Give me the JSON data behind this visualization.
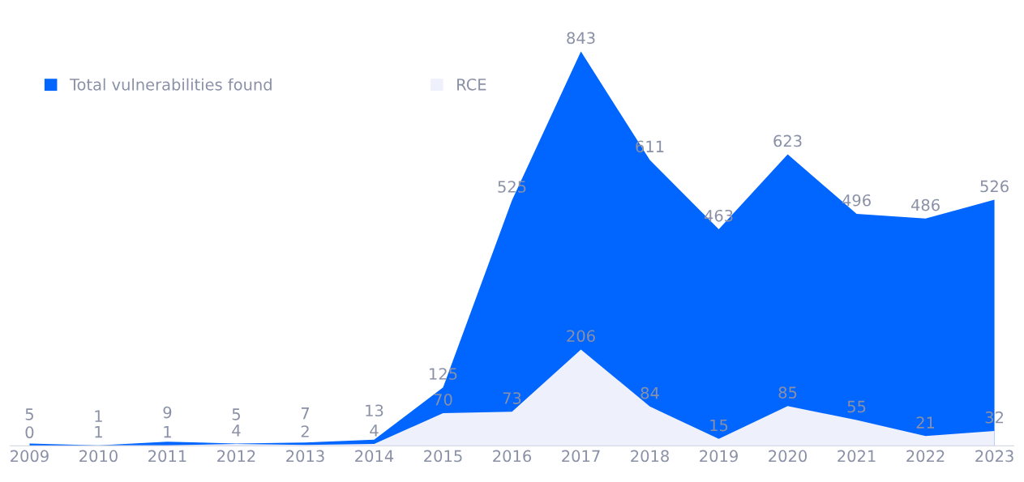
{
  "chart_data": {
    "type": "area",
    "categories": [
      "2009",
      "2010",
      "2011",
      "2012",
      "2013",
      "2014",
      "2015",
      "2016",
      "2017",
      "2018",
      "2019",
      "2020",
      "2021",
      "2022",
      "2023"
    ],
    "series": [
      {
        "name": "Total vulnerabilities found",
        "color": "#0066ff",
        "values": [
          5,
          1,
          9,
          5,
          7,
          13,
          125,
          525,
          843,
          611,
          463,
          623,
          496,
          486,
          526
        ]
      },
      {
        "name": "RCE",
        "color": "#eef0fc",
        "values": [
          0,
          1,
          1,
          4,
          2,
          4,
          70,
          73,
          206,
          84,
          15,
          85,
          55,
          21,
          32
        ]
      }
    ],
    "data_labels": true,
    "legend": "top left",
    "grid": false,
    "tick_labels": "x"
  }
}
